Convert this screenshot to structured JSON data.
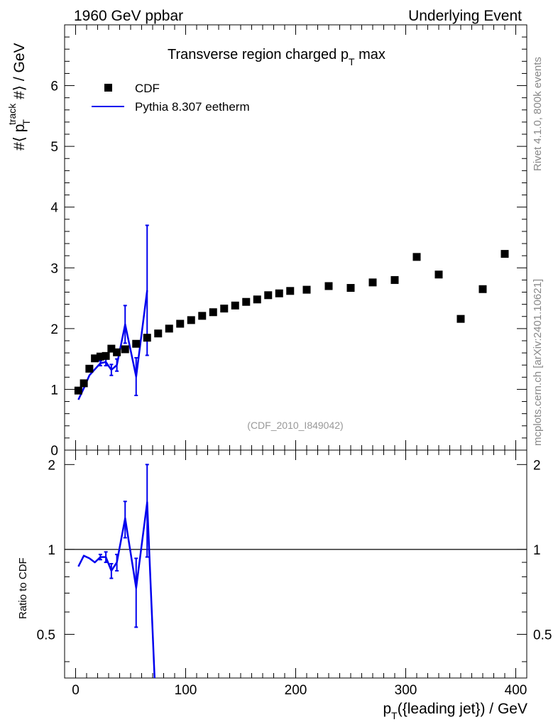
{
  "header": {
    "left": "1960 GeV ppbar",
    "right": "Underlying Event"
  },
  "side_labels": {
    "rivet": "Rivet 4.1.0,  800k events",
    "mcplots": "mcplots.cern.ch [arXiv:2401.10621]"
  },
  "colors": {
    "data": "#000000",
    "mc": "#0000ee",
    "watermark": "#999999",
    "side_text": "#888888"
  },
  "chart_data": [
    {
      "type": "scatter",
      "title": "Transverse region charged p_T max",
      "title_parts": {
        "main": "Transverse region charged p",
        "sub": "T",
        "tail": " max"
      },
      "ylabel": "#⟨ p_T^track #⟩ / GeV",
      "ylabel_parts": {
        "a": "#⟨ p",
        "sub": "T",
        "sup": "track",
        "b": " #⟩ / GeV"
      },
      "xlabel": "",
      "watermark": "(CDF_2010_I849042)",
      "xlim": [
        -10,
        410
      ],
      "ylim": [
        0,
        7
      ],
      "yticks": [
        0,
        1,
        2,
        3,
        4,
        5,
        6
      ],
      "ytick_labels": [
        "0",
        "1",
        "2",
        "3",
        "4",
        "5",
        "6"
      ],
      "legend_position": "top-left",
      "series": [
        {
          "name": "CDF",
          "style": "markers",
          "x": [
            2.5,
            7.5,
            12.5,
            17.5,
            22.5,
            27.5,
            32.5,
            37.5,
            45,
            55,
            65,
            75,
            85,
            95,
            105,
            115,
            125,
            135,
            145,
            155,
            165,
            175,
            185,
            195,
            210,
            230,
            250,
            270,
            290,
            310,
            330,
            350,
            370,
            390
          ],
          "y": [
            0.98,
            1.1,
            1.34,
            1.51,
            1.54,
            1.55,
            1.67,
            1.61,
            1.66,
            1.75,
            1.85,
            1.92,
            2.0,
            2.08,
            2.14,
            2.21,
            2.27,
            2.33,
            2.38,
            2.44,
            2.48,
            2.55,
            2.58,
            2.62,
            2.64,
            2.7,
            2.67,
            2.76,
            2.8,
            3.18,
            2.89,
            2.16,
            2.65,
            3.23
          ]
        },
        {
          "name": "Pythia 8.307 eetherm",
          "style": "line",
          "x": [
            2.5,
            7.5,
            12.5,
            17.5,
            22.5,
            27.5,
            32.5,
            37.5,
            45,
            55,
            65
          ],
          "y": [
            0.83,
            1.02,
            1.23,
            1.33,
            1.43,
            1.45,
            1.32,
            1.4,
            2.07,
            1.21,
            2.63
          ],
          "err": [
            0.0,
            0.0,
            0.0,
            0.0,
            0.04,
            0.06,
            0.09,
            0.1,
            0.31,
            0.31,
            1.07
          ]
        }
      ]
    },
    {
      "type": "line",
      "ylabel": "Ratio to CDF",
      "xlabel": "p_T({leading jet}) / GeV",
      "xlabel_parts": {
        "a": "p",
        "sub": "T",
        "b": "({leading jet}) / GeV"
      },
      "xlim": [
        -10,
        410
      ],
      "ylim": [
        0.35,
        2.25
      ],
      "xticks": [
        0,
        100,
        200,
        300,
        400
      ],
      "xtick_labels": [
        "0",
        "100",
        "200",
        "300",
        "400"
      ],
      "yticks": [
        0.5,
        1,
        2
      ],
      "ytick_labels": [
        "0.5",
        "1",
        "2"
      ],
      "reference_line": 1,
      "series": [
        {
          "name": "Pythia 8.307 eetherm / CDF",
          "x": [
            2.5,
            7.5,
            12.5,
            17.5,
            22.5,
            27.5,
            32.5,
            37.5,
            45,
            55,
            65,
            75
          ],
          "y": [
            0.87,
            0.95,
            0.93,
            0.9,
            0.94,
            0.94,
            0.84,
            0.9,
            1.29,
            0.73,
            1.47,
            0.0
          ],
          "err": [
            0.0,
            0.0,
            0.0,
            0.0,
            0.02,
            0.04,
            0.05,
            0.06,
            0.19,
            0.2,
            0.53,
            0.0
          ]
        }
      ]
    }
  ]
}
